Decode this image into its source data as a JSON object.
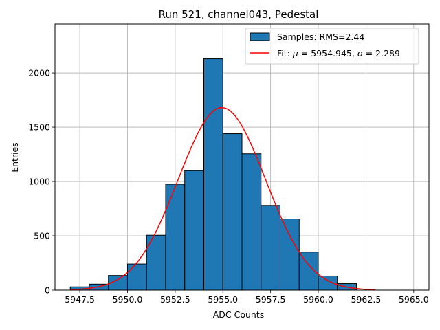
{
  "chart_data": {
    "type": "bar",
    "title": "Run 521, channel043, Pedestal",
    "xlabel": "ADC Counts",
    "ylabel": "Entries",
    "xlim": [
      5946.2,
      5965.8
    ],
    "ylim": [
      0,
      2450
    ],
    "xticks": [
      5947.5,
      5950.0,
      5952.5,
      5955.0,
      5957.5,
      5960.0,
      5962.5,
      5965.0
    ],
    "xtick_labels": [
      "5947.5",
      "5950.0",
      "5952.5",
      "5955.0",
      "5957.5",
      "5960.0",
      "5962.5",
      "5965.0"
    ],
    "yticks": [
      0,
      500,
      1000,
      1500,
      2000
    ],
    "ytick_labels": [
      "0",
      "500",
      "1000",
      "1500",
      "2000"
    ],
    "grid": true,
    "legend_position": "top-right",
    "colors": {
      "bars": "#1f77b4",
      "bar_edge": "#000000",
      "fit": "#ff0000"
    },
    "histogram": {
      "name": "Samples: RMS=2.44",
      "bin_edges": [
        5947,
        5948,
        5949,
        5950,
        5951,
        5952,
        5953,
        5954,
        5955,
        5956,
        5957,
        5958,
        5959,
        5960,
        5961,
        5962
      ],
      "counts": [
        30,
        55,
        135,
        240,
        505,
        975,
        1100,
        2130,
        1440,
        1255,
        780,
        655,
        350,
        130,
        60
      ]
    },
    "fit": {
      "name_prefix": "Fit: ",
      "mu_symbol": "μ",
      "mu_value": " = 5954.945, ",
      "sigma_symbol": "σ",
      "sigma_value": " = 2.289",
      "mu": 5954.945,
      "sigma": 2.289,
      "amplitude": 1680,
      "x_range": [
        5947,
        5963
      ]
    }
  }
}
